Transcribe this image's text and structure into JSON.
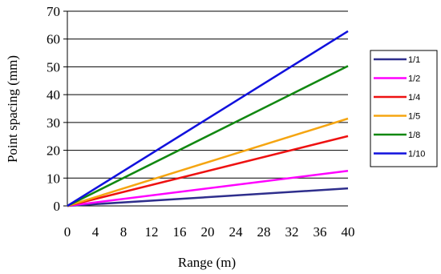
{
  "chart_data": {
    "type": "line",
    "title": "",
    "xlabel": "Range (m)",
    "ylabel": "Point spacing (mm)",
    "xlim": [
      0,
      40
    ],
    "ylim": [
      0,
      70
    ],
    "xticks": [
      0,
      4,
      8,
      12,
      16,
      20,
      24,
      28,
      32,
      36,
      40
    ],
    "yticks": [
      0,
      10,
      20,
      30,
      40,
      50,
      60,
      70
    ],
    "grid": "horizontal",
    "legend": "right",
    "series": [
      {
        "name": "1/1",
        "color": "#2e2e8c",
        "x": [
          0,
          40
        ],
        "values": [
          0,
          6.3
        ]
      },
      {
        "name": "1/2",
        "color": "#ff00ff",
        "x": [
          0,
          40
        ],
        "values": [
          0,
          12.6
        ]
      },
      {
        "name": "1/4",
        "color": "#ee1111",
        "x": [
          0,
          40
        ],
        "values": [
          0,
          25.1
        ]
      },
      {
        "name": "1/5",
        "color": "#f5a511",
        "x": [
          0,
          40
        ],
        "values": [
          0,
          31.4
        ]
      },
      {
        "name": "1/8",
        "color": "#118811",
        "x": [
          0,
          40
        ],
        "values": [
          0,
          50.3
        ]
      },
      {
        "name": "1/10",
        "color": "#1111dd",
        "x": [
          0,
          40
        ],
        "values": [
          0,
          62.8
        ]
      }
    ]
  }
}
